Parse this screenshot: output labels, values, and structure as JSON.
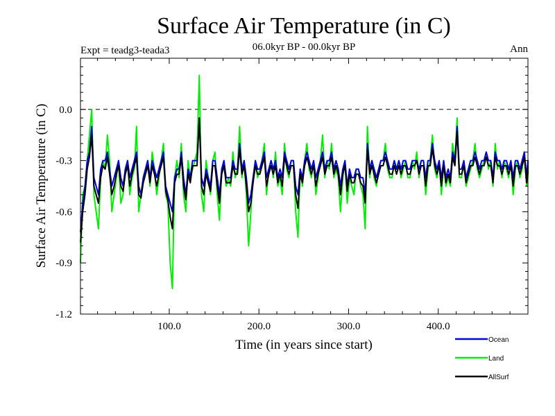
{
  "chart_data": {
    "type": "line",
    "title": "Surface Air Temperature (in C)",
    "subtitle": "06.0kyr BP - 00.0kyr BP",
    "experiment_label": "Expt = teadg3-teada3",
    "season_label": "Ann",
    "xlabel": "Time (in years since start)",
    "ylabel": "Surface Air Temperature (in C)",
    "xlim": [
      1,
      500
    ],
    "ylim": [
      -1.2,
      0.3
    ],
    "x_tick_labels": [
      "100.0",
      "200.0",
      "300.0",
      "400.0"
    ],
    "y_tick_labels": [
      "-1.2",
      "-0.9",
      "-0.6",
      "-0.3",
      "0.0"
    ],
    "reference_line": 0.0,
    "legend_position": "bottom-right",
    "x_sampling": {
      "start": 1,
      "step": 10
    },
    "series": [
      {
        "name": "Land",
        "color": "#00ee00",
        "values": [
          -0.9,
          -0.5,
          -0.45,
          -0.3,
          -0.15,
          0.0,
          -0.5,
          -0.6,
          -0.7,
          -0.4,
          -0.3,
          -0.35,
          -0.15,
          -0.3,
          -0.6,
          -0.5,
          -0.4,
          -0.3,
          -0.55,
          -0.5,
          -0.35,
          -0.3,
          -0.5,
          -0.4,
          -0.35,
          -0.1,
          -0.6,
          -0.5,
          -0.4,
          -0.35,
          -0.3,
          -0.45,
          -0.25,
          -0.35,
          -0.5,
          -0.4,
          -0.3,
          -0.2,
          -0.5,
          -0.55,
          -0.9,
          -1.05,
          -0.4,
          -0.3,
          -0.4,
          -0.2,
          -0.5,
          -0.6,
          -0.3,
          -0.4,
          -0.35,
          -0.3,
          -0.25,
          0.2,
          -0.5,
          -0.6,
          -0.3,
          -0.4,
          -0.5,
          -0.3,
          -0.25,
          -0.5,
          -0.65,
          -0.35,
          -0.3,
          -0.45,
          -0.4,
          -0.45,
          -0.25,
          -0.4,
          -0.35,
          -0.1,
          -0.4,
          -0.3,
          -0.5,
          -0.8,
          -0.6,
          -0.4,
          -0.3,
          -0.4,
          -0.35,
          -0.3,
          -0.2,
          -0.5,
          -0.35,
          -0.3,
          -0.4,
          -0.25,
          -0.45,
          -0.4,
          -0.5,
          -0.2,
          -0.35,
          -0.4,
          -0.3,
          -0.3,
          -0.6,
          -0.75,
          -0.35,
          -0.45,
          -0.3,
          -0.2,
          -0.35,
          -0.4,
          -0.3,
          -0.5,
          -0.4,
          -0.3,
          -0.15,
          -0.4,
          -0.3,
          -0.35,
          -0.2,
          -0.4,
          -0.35,
          -0.4,
          -0.6,
          -0.4,
          -0.3,
          -0.55,
          -0.4,
          -0.45,
          -0.5,
          -0.35,
          -0.35,
          -0.45,
          -0.5,
          -0.7,
          -0.1,
          -0.4,
          -0.3,
          -0.4,
          -0.45,
          -0.35,
          -0.3,
          -0.3,
          -0.2,
          -0.35,
          -0.4,
          -0.4,
          -0.3,
          -0.35,
          -0.3,
          -0.4,
          -0.35,
          -0.3,
          -0.4,
          -0.4,
          -0.3,
          -0.35,
          -0.25,
          -0.4,
          -0.3,
          -0.3,
          -0.5,
          -0.35,
          -0.3,
          -0.15,
          -0.35,
          -0.4,
          -0.3,
          -0.5,
          -0.3,
          -0.45,
          -0.4,
          -0.45,
          -0.2,
          -0.3,
          -0.05,
          -0.4,
          -0.4,
          -0.3,
          -0.45,
          -0.4,
          -0.35,
          -0.3,
          -0.2,
          -0.35,
          -0.4,
          -0.35,
          -0.3,
          -0.25,
          -0.35,
          -0.3,
          -0.45,
          -0.2,
          -0.35,
          -0.3,
          -0.4,
          -0.3,
          -0.35,
          -0.4,
          -0.3,
          -0.5,
          -0.35,
          -0.3,
          -0.4,
          -0.35,
          -0.25,
          -0.45,
          -0.35,
          -0.4,
          -0.3,
          -0.35,
          -0.3,
          -0.4,
          -0.3
        ]
      },
      {
        "name": "Ocean",
        "color": "#0000dd",
        "values": [
          -0.72,
          -0.55,
          -0.45,
          -0.3,
          -0.25,
          -0.1,
          -0.4,
          -0.45,
          -0.5,
          -0.35,
          -0.3,
          -0.3,
          -0.25,
          -0.35,
          -0.45,
          -0.4,
          -0.35,
          -0.3,
          -0.4,
          -0.45,
          -0.35,
          -0.3,
          -0.4,
          -0.35,
          -0.3,
          -0.25,
          -0.45,
          -0.5,
          -0.4,
          -0.35,
          -0.3,
          -0.4,
          -0.3,
          -0.35,
          -0.4,
          -0.35,
          -0.3,
          -0.25,
          -0.45,
          -0.5,
          -0.55,
          -0.6,
          -0.4,
          -0.35,
          -0.35,
          -0.25,
          -0.4,
          -0.5,
          -0.35,
          -0.4,
          -0.3,
          -0.3,
          -0.3,
          -0.05,
          -0.4,
          -0.45,
          -0.35,
          -0.4,
          -0.45,
          -0.3,
          -0.3,
          -0.4,
          -0.5,
          -0.35,
          -0.3,
          -0.4,
          -0.4,
          -0.4,
          -0.3,
          -0.35,
          -0.35,
          -0.2,
          -0.35,
          -0.3,
          -0.4,
          -0.55,
          -0.5,
          -0.4,
          -0.3,
          -0.35,
          -0.35,
          -0.3,
          -0.25,
          -0.4,
          -0.35,
          -0.3,
          -0.35,
          -0.3,
          -0.4,
          -0.35,
          -0.4,
          -0.25,
          -0.3,
          -0.35,
          -0.3,
          -0.3,
          -0.45,
          -0.5,
          -0.35,
          -0.4,
          -0.3,
          -0.25,
          -0.3,
          -0.35,
          -0.3,
          -0.4,
          -0.35,
          -0.3,
          -0.25,
          -0.35,
          -0.3,
          -0.3,
          -0.25,
          -0.35,
          -0.3,
          -0.35,
          -0.45,
          -0.35,
          -0.3,
          -0.45,
          -0.35,
          -0.4,
          -0.4,
          -0.35,
          -0.35,
          -0.4,
          -0.4,
          -0.5,
          -0.2,
          -0.35,
          -0.3,
          -0.35,
          -0.4,
          -0.35,
          -0.3,
          -0.3,
          -0.25,
          -0.3,
          -0.35,
          -0.35,
          -0.3,
          -0.35,
          -0.3,
          -0.35,
          -0.3,
          -0.3,
          -0.35,
          -0.35,
          -0.3,
          -0.3,
          -0.3,
          -0.35,
          -0.3,
          -0.3,
          -0.4,
          -0.3,
          -0.3,
          -0.2,
          -0.3,
          -0.35,
          -0.3,
          -0.4,
          -0.3,
          -0.4,
          -0.35,
          -0.4,
          -0.25,
          -0.3,
          -0.1,
          -0.35,
          -0.35,
          -0.3,
          -0.4,
          -0.35,
          -0.3,
          -0.3,
          -0.25,
          -0.3,
          -0.35,
          -0.3,
          -0.3,
          -0.25,
          -0.3,
          -0.3,
          -0.4,
          -0.25,
          -0.3,
          -0.3,
          -0.35,
          -0.3,
          -0.3,
          -0.35,
          -0.3,
          -0.4,
          -0.3,
          -0.3,
          -0.35,
          -0.3,
          -0.25,
          -0.4,
          -0.3,
          -0.35,
          -0.3,
          -0.3,
          -0.3,
          -0.35,
          -0.3
        ]
      },
      {
        "name": "AllSurf",
        "color": "#000000",
        "values": [
          -0.78,
          -0.6,
          -0.5,
          -0.35,
          -0.28,
          -0.15,
          -0.45,
          -0.5,
          -0.55,
          -0.4,
          -0.33,
          -0.35,
          -0.28,
          -0.38,
          -0.5,
          -0.45,
          -0.38,
          -0.33,
          -0.45,
          -0.48,
          -0.38,
          -0.33,
          -0.45,
          -0.38,
          -0.33,
          -0.28,
          -0.5,
          -0.52,
          -0.43,
          -0.38,
          -0.33,
          -0.43,
          -0.33,
          -0.38,
          -0.45,
          -0.38,
          -0.33,
          -0.28,
          -0.48,
          -0.53,
          -0.63,
          -0.7,
          -0.43,
          -0.38,
          -0.38,
          -0.28,
          -0.45,
          -0.53,
          -0.38,
          -0.43,
          -0.33,
          -0.33,
          -0.33,
          -0.05,
          -0.45,
          -0.5,
          -0.38,
          -0.43,
          -0.48,
          -0.33,
          -0.33,
          -0.45,
          -0.55,
          -0.38,
          -0.33,
          -0.43,
          -0.43,
          -0.43,
          -0.33,
          -0.38,
          -0.38,
          -0.23,
          -0.38,
          -0.33,
          -0.45,
          -0.6,
          -0.55,
          -0.43,
          -0.33,
          -0.38,
          -0.38,
          -0.33,
          -0.28,
          -0.45,
          -0.38,
          -0.33,
          -0.38,
          -0.33,
          -0.43,
          -0.38,
          -0.45,
          -0.28,
          -0.33,
          -0.38,
          -0.33,
          -0.33,
          -0.5,
          -0.58,
          -0.38,
          -0.43,
          -0.33,
          -0.28,
          -0.33,
          -0.38,
          -0.33,
          -0.45,
          -0.38,
          -0.33,
          -0.28,
          -0.38,
          -0.33,
          -0.33,
          -0.28,
          -0.38,
          -0.33,
          -0.38,
          -0.5,
          -0.38,
          -0.33,
          -0.48,
          -0.38,
          -0.43,
          -0.43,
          -0.38,
          -0.38,
          -0.43,
          -0.45,
          -0.55,
          -0.23,
          -0.38,
          -0.33,
          -0.38,
          -0.43,
          -0.38,
          -0.33,
          -0.33,
          -0.28,
          -0.33,
          -0.38,
          -0.38,
          -0.33,
          -0.38,
          -0.33,
          -0.38,
          -0.33,
          -0.33,
          -0.38,
          -0.38,
          -0.33,
          -0.33,
          -0.3,
          -0.38,
          -0.33,
          -0.33,
          -0.45,
          -0.33,
          -0.33,
          -0.23,
          -0.33,
          -0.38,
          -0.33,
          -0.45,
          -0.33,
          -0.43,
          -0.38,
          -0.43,
          -0.28,
          -0.33,
          -0.13,
          -0.38,
          -0.38,
          -0.33,
          -0.43,
          -0.38,
          -0.33,
          -0.33,
          -0.28,
          -0.33,
          -0.38,
          -0.33,
          -0.33,
          -0.28,
          -0.33,
          -0.33,
          -0.43,
          -0.28,
          -0.33,
          -0.33,
          -0.38,
          -0.33,
          -0.33,
          -0.38,
          -0.33,
          -0.45,
          -0.33,
          -0.33,
          -0.38,
          -0.33,
          -0.28,
          -0.43,
          -0.33,
          -0.38,
          -0.33,
          -0.33,
          -0.33,
          -0.38,
          -0.33
        ]
      }
    ],
    "legend_order": [
      "Ocean",
      "Land",
      "AllSurf"
    ]
  }
}
